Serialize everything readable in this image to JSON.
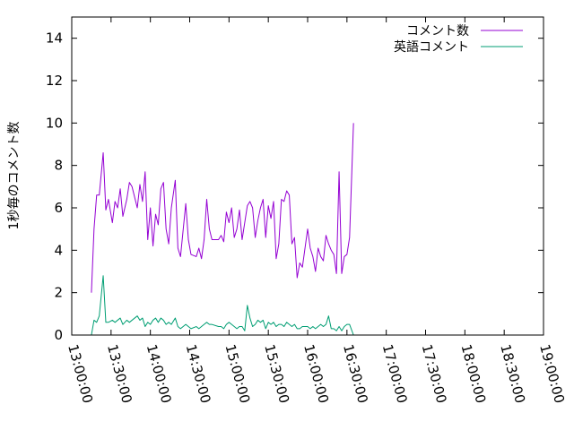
{
  "chart_data": {
    "type": "line",
    "ylabel": "1秒毎のコメント数",
    "xlabel": "",
    "ylim": [
      0,
      15
    ],
    "yticks": [
      0,
      2,
      4,
      6,
      8,
      10,
      12,
      14
    ],
    "xlim": [
      "13:00:00",
      "19:00:00"
    ],
    "xticks": [
      "13:00:00",
      "13:30:00",
      "14:00:00",
      "14:30:00",
      "15:00:00",
      "15:30:00",
      "16:00:00",
      "16:30:00",
      "17:00:00",
      "17:30:00",
      "18:00:00",
      "18:30:00",
      "19:00:00"
    ],
    "grid": false,
    "legend": "top-right",
    "series": [
      {
        "name": "コメント数",
        "color": "#9400d3",
        "points": [
          [
            "13:15:00",
            2.0
          ],
          [
            "13:17:00",
            5.0
          ],
          [
            "13:19:00",
            6.6
          ],
          [
            "13:21:00",
            6.6
          ],
          [
            "13:24:00",
            8.6
          ],
          [
            "13:26:00",
            5.9
          ],
          [
            "13:28:00",
            6.4
          ],
          [
            "13:31:00",
            5.3
          ],
          [
            "13:33:00",
            6.3
          ],
          [
            "13:35:00",
            6.0
          ],
          [
            "13:37:00",
            6.9
          ],
          [
            "13:39:00",
            5.6
          ],
          [
            "13:42:00",
            6.4
          ],
          [
            "13:44:00",
            7.2
          ],
          [
            "13:46:00",
            7.0
          ],
          [
            "13:50:00",
            6.0
          ],
          [
            "13:52:00",
            7.1
          ],
          [
            "13:54:00",
            6.3
          ],
          [
            "13:56:00",
            7.7
          ],
          [
            "13:58:00",
            4.5
          ],
          [
            "14:00:00",
            6.0
          ],
          [
            "14:02:00",
            4.2
          ],
          [
            "14:04:00",
            5.7
          ],
          [
            "14:06:00",
            5.2
          ],
          [
            "14:08:00",
            6.9
          ],
          [
            "14:10:00",
            7.2
          ],
          [
            "14:12:00",
            5.0
          ],
          [
            "14:14:00",
            4.3
          ],
          [
            "14:16:00",
            6.0
          ],
          [
            "14:19:00",
            7.3
          ],
          [
            "14:21:00",
            4.1
          ],
          [
            "14:23:00",
            3.7
          ],
          [
            "14:27:00",
            6.2
          ],
          [
            "14:29:00",
            4.5
          ],
          [
            "14:31:00",
            3.8
          ],
          [
            "14:35:00",
            3.7
          ],
          [
            "14:37:00",
            4.1
          ],
          [
            "14:39:00",
            3.6
          ],
          [
            "14:41:00",
            4.5
          ],
          [
            "14:43:00",
            6.4
          ],
          [
            "14:45:00",
            5.0
          ],
          [
            "14:47:00",
            4.5
          ],
          [
            "14:52:00",
            4.5
          ],
          [
            "14:54:00",
            4.7
          ],
          [
            "14:56:00",
            4.4
          ],
          [
            "14:58:00",
            5.8
          ],
          [
            "15:00:00",
            5.3
          ],
          [
            "15:02:00",
            6.0
          ],
          [
            "15:04:00",
            4.6
          ],
          [
            "15:06:00",
            5.0
          ],
          [
            "15:08:00",
            5.9
          ],
          [
            "15:10:00",
            4.5
          ],
          [
            "15:12:00",
            5.3
          ],
          [
            "15:14:00",
            6.1
          ],
          [
            "15:16:00",
            6.3
          ],
          [
            "15:18:00",
            6.0
          ],
          [
            "15:20:00",
            4.6
          ],
          [
            "15:22:00",
            5.4
          ],
          [
            "15:24:00",
            6.0
          ],
          [
            "15:26:00",
            6.4
          ],
          [
            "15:28:00",
            4.6
          ],
          [
            "15:30:00",
            6.1
          ],
          [
            "15:32:00",
            5.5
          ],
          [
            "15:34:00",
            6.3
          ],
          [
            "15:36:00",
            3.6
          ],
          [
            "15:38:00",
            4.3
          ],
          [
            "15:40:00",
            6.4
          ],
          [
            "15:42:00",
            6.3
          ],
          [
            "15:44:00",
            6.8
          ],
          [
            "15:46:00",
            6.6
          ],
          [
            "15:48:00",
            4.3
          ],
          [
            "15:50:00",
            4.6
          ],
          [
            "15:52:00",
            2.7
          ],
          [
            "15:54:00",
            3.4
          ],
          [
            "15:56:00",
            3.2
          ],
          [
            "15:58:00",
            4.1
          ],
          [
            "16:00:00",
            5.0
          ],
          [
            "16:02:00",
            4.1
          ],
          [
            "16:04:00",
            3.7
          ],
          [
            "16:06:00",
            3.0
          ],
          [
            "16:08:00",
            4.1
          ],
          [
            "16:10:00",
            3.7
          ],
          [
            "16:12:00",
            3.5
          ],
          [
            "16:14:00",
            4.7
          ],
          [
            "16:16:00",
            4.3
          ],
          [
            "16:18:00",
            4.0
          ],
          [
            "16:20:00",
            3.8
          ],
          [
            "16:22:00",
            2.9
          ],
          [
            "16:24:00",
            7.7
          ],
          [
            "16:26:00",
            2.9
          ],
          [
            "16:28:00",
            3.7
          ],
          [
            "16:30:00",
            3.8
          ],
          [
            "16:32:00",
            4.6
          ],
          [
            "16:35:00",
            10.0
          ]
        ]
      },
      {
        "name": "英語コメント",
        "color": "#009e73",
        "points": [
          [
            "13:15:00",
            0.0
          ],
          [
            "13:17:00",
            0.7
          ],
          [
            "13:19:00",
            0.6
          ],
          [
            "13:21:00",
            0.9
          ],
          [
            "13:24:00",
            2.8
          ],
          [
            "13:26:00",
            0.6
          ],
          [
            "13:28:00",
            0.6
          ],
          [
            "13:31:00",
            0.7
          ],
          [
            "13:33:00",
            0.6
          ],
          [
            "13:35:00",
            0.7
          ],
          [
            "13:37:00",
            0.8
          ],
          [
            "13:39:00",
            0.5
          ],
          [
            "13:42:00",
            0.7
          ],
          [
            "13:44:00",
            0.6
          ],
          [
            "13:46:00",
            0.7
          ],
          [
            "13:50:00",
            0.9
          ],
          [
            "13:52:00",
            0.7
          ],
          [
            "13:54:00",
            0.8
          ],
          [
            "13:56:00",
            0.4
          ],
          [
            "13:58:00",
            0.6
          ],
          [
            "14:00:00",
            0.5
          ],
          [
            "14:02:00",
            0.7
          ],
          [
            "14:04:00",
            0.8
          ],
          [
            "14:06:00",
            0.6
          ],
          [
            "14:08:00",
            0.8
          ],
          [
            "14:10:00",
            0.7
          ],
          [
            "14:12:00",
            0.5
          ],
          [
            "14:14:00",
            0.6
          ],
          [
            "14:16:00",
            0.5
          ],
          [
            "14:19:00",
            0.8
          ],
          [
            "14:21:00",
            0.4
          ],
          [
            "14:23:00",
            0.3
          ],
          [
            "14:27:00",
            0.5
          ],
          [
            "14:29:00",
            0.4
          ],
          [
            "14:31:00",
            0.3
          ],
          [
            "14:35:00",
            0.4
          ],
          [
            "14:37:00",
            0.3
          ],
          [
            "14:39:00",
            0.4
          ],
          [
            "14:41:00",
            0.5
          ],
          [
            "14:43:00",
            0.6
          ],
          [
            "14:45:00",
            0.5
          ],
          [
            "14:47:00",
            0.5
          ],
          [
            "14:52:00",
            0.4
          ],
          [
            "14:54:00",
            0.4
          ],
          [
            "14:56:00",
            0.3
          ],
          [
            "14:58:00",
            0.5
          ],
          [
            "15:00:00",
            0.6
          ],
          [
            "15:02:00",
            0.5
          ],
          [
            "15:04:00",
            0.4
          ],
          [
            "15:06:00",
            0.3
          ],
          [
            "15:08:00",
            0.4
          ],
          [
            "15:10:00",
            0.4
          ],
          [
            "15:12:00",
            0.2
          ],
          [
            "15:14:00",
            1.4
          ],
          [
            "15:16:00",
            0.8
          ],
          [
            "15:18:00",
            0.4
          ],
          [
            "15:20:00",
            0.5
          ],
          [
            "15:22:00",
            0.7
          ],
          [
            "15:24:00",
            0.6
          ],
          [
            "15:26:00",
            0.7
          ],
          [
            "15:28:00",
            0.3
          ],
          [
            "15:30:00",
            0.6
          ],
          [
            "15:32:00",
            0.5
          ],
          [
            "15:34:00",
            0.6
          ],
          [
            "15:36:00",
            0.4
          ],
          [
            "15:38:00",
            0.5
          ],
          [
            "15:40:00",
            0.5
          ],
          [
            "15:42:00",
            0.4
          ],
          [
            "15:44:00",
            0.6
          ],
          [
            "15:46:00",
            0.5
          ],
          [
            "15:48:00",
            0.4
          ],
          [
            "15:50:00",
            0.5
          ],
          [
            "15:52:00",
            0.3
          ],
          [
            "15:54:00",
            0.3
          ],
          [
            "15:56:00",
            0.4
          ],
          [
            "15:58:00",
            0.4
          ],
          [
            "16:00:00",
            0.4
          ],
          [
            "16:02:00",
            0.3
          ],
          [
            "16:04:00",
            0.4
          ],
          [
            "16:06:00",
            0.3
          ],
          [
            "16:08:00",
            0.4
          ],
          [
            "16:10:00",
            0.5
          ],
          [
            "16:12:00",
            0.4
          ],
          [
            "16:14:00",
            0.5
          ],
          [
            "16:16:00",
            0.9
          ],
          [
            "16:18:00",
            0.3
          ],
          [
            "16:20:00",
            0.3
          ],
          [
            "16:22:00",
            0.2
          ],
          [
            "16:24:00",
            0.4
          ],
          [
            "16:26:00",
            0.2
          ],
          [
            "16:28:00",
            0.4
          ],
          [
            "16:30:00",
            0.5
          ],
          [
            "16:32:00",
            0.5
          ],
          [
            "16:35:00",
            0.0
          ]
        ]
      }
    ]
  }
}
